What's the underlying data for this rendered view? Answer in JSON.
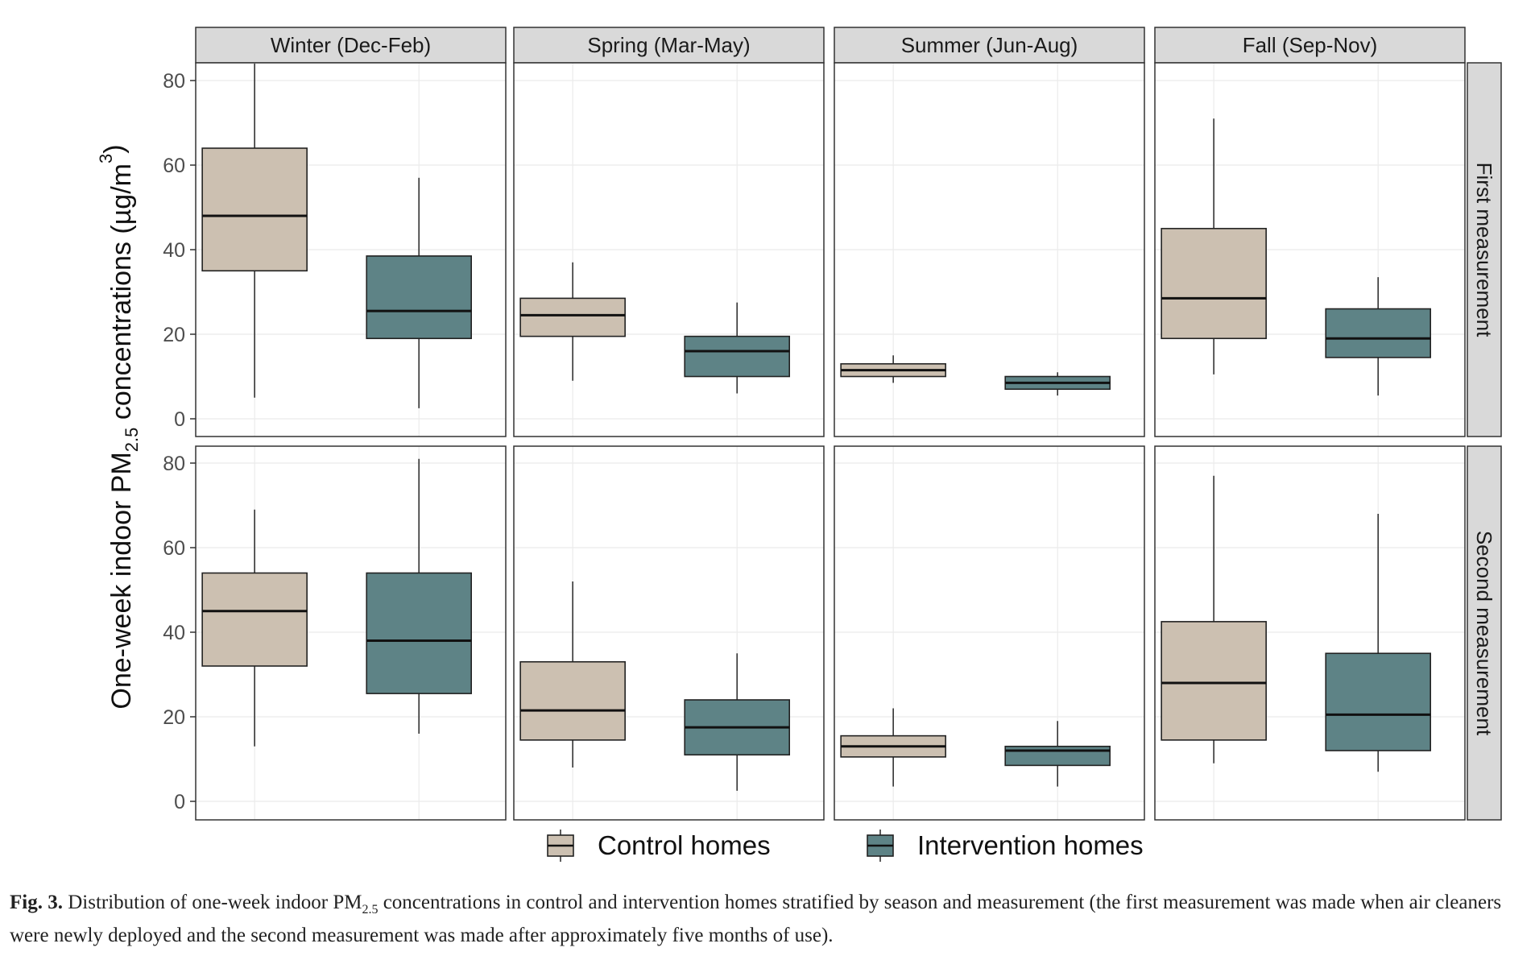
{
  "chart_data": {
    "type": "boxplot",
    "ylabel": {
      "main": "One-week indoor PM",
      "sub": "2.5",
      "tail": " concentrations (µg/m",
      "sup": "3",
      "end": ")"
    },
    "ylim": [
      0,
      80
    ],
    "yticks": [
      0,
      20,
      40,
      60,
      80
    ],
    "grid": true,
    "columns": [
      "Winter (Dec-Feb)",
      "Spring (Mar-May)",
      "Summer (Jun-Aug)",
      "Fall (Sep-Nov)"
    ],
    "rows": [
      "First measurement",
      "Second measurement"
    ],
    "series": [
      {
        "name": "Control homes",
        "color": "#CCC0B1"
      },
      {
        "name": "Intervention homes",
        "color": "#5E8386"
      }
    ],
    "legend_position": "bottom",
    "panels": [
      {
        "row": "First measurement",
        "column": "Winter (Dec-Feb)",
        "boxes": [
          {
            "series": "Control homes",
            "lower": 5,
            "q1": 35,
            "median": 48,
            "q3": 64,
            "upper": 84
          },
          {
            "series": "Intervention homes",
            "lower": 2.5,
            "q1": 19,
            "median": 25.5,
            "q3": 38.5,
            "upper": 57
          }
        ]
      },
      {
        "row": "First measurement",
        "column": "Spring (Mar-May)",
        "boxes": [
          {
            "series": "Control homes",
            "lower": 9,
            "q1": 19.5,
            "median": 24.5,
            "q3": 28.5,
            "upper": 37
          },
          {
            "series": "Intervention homes",
            "lower": 6,
            "q1": 10,
            "median": 16,
            "q3": 19.5,
            "upper": 27.5
          }
        ]
      },
      {
        "row": "First measurement",
        "column": "Summer (Jun-Aug)",
        "boxes": [
          {
            "series": "Control homes",
            "lower": 8.5,
            "q1": 10,
            "median": 11.5,
            "q3": 13,
            "upper": 15
          },
          {
            "series": "Intervention homes",
            "lower": 5.5,
            "q1": 7,
            "median": 8.5,
            "q3": 10,
            "upper": 11
          }
        ]
      },
      {
        "row": "First measurement",
        "column": "Fall (Sep-Nov)",
        "boxes": [
          {
            "series": "Control homes",
            "lower": 10.5,
            "q1": 19,
            "median": 28.5,
            "q3": 45,
            "upper": 71
          },
          {
            "series": "Intervention homes",
            "lower": 5.5,
            "q1": 14.5,
            "median": 19,
            "q3": 26,
            "upper": 33.5
          }
        ]
      },
      {
        "row": "Second measurement",
        "column": "Winter (Dec-Feb)",
        "boxes": [
          {
            "series": "Control homes",
            "lower": 13,
            "q1": 32,
            "median": 45,
            "q3": 54,
            "upper": 69
          },
          {
            "series": "Intervention homes",
            "lower": 16,
            "q1": 25.5,
            "median": 38,
            "q3": 54,
            "upper": 81
          }
        ]
      },
      {
        "row": "Second measurement",
        "column": "Spring (Mar-May)",
        "boxes": [
          {
            "series": "Control homes",
            "lower": 8,
            "q1": 14.5,
            "median": 21.5,
            "q3": 33,
            "upper": 52
          },
          {
            "series": "Intervention homes",
            "lower": 2.5,
            "q1": 11,
            "median": 17.5,
            "q3": 24,
            "upper": 35
          }
        ]
      },
      {
        "row": "Second measurement",
        "column": "Summer (Jun-Aug)",
        "boxes": [
          {
            "series": "Control homes",
            "lower": 3.5,
            "q1": 10.5,
            "median": 13,
            "q3": 15.5,
            "upper": 22
          },
          {
            "series": "Intervention homes",
            "lower": 3.5,
            "q1": 8.5,
            "median": 12,
            "q3": 13,
            "upper": 19
          }
        ]
      },
      {
        "row": "Second measurement",
        "column": "Fall (Sep-Nov)",
        "boxes": [
          {
            "series": "Control homes",
            "lower": 9,
            "q1": 14.5,
            "median": 28,
            "q3": 42.5,
            "upper": 77
          },
          {
            "series": "Intervention homes",
            "lower": 7,
            "q1": 12,
            "median": 20.5,
            "q3": 35,
            "upper": 68
          }
        ]
      }
    ]
  },
  "caption": {
    "label": "Fig. 3.",
    "part1": " Distribution of one-week indoor PM",
    "sub": "2.5",
    "part2": " concentrations in control and intervention homes stratified by season and measurement (the first measurement was made when air cleaners",
    "line2": "were newly deployed and the second measurement was made after approximately five months of use)."
  },
  "colors": {
    "control": "#CCC0B1",
    "intervention": "#5E8386",
    "strip": "#D9D9D9",
    "grid": "#EBEBEB"
  }
}
